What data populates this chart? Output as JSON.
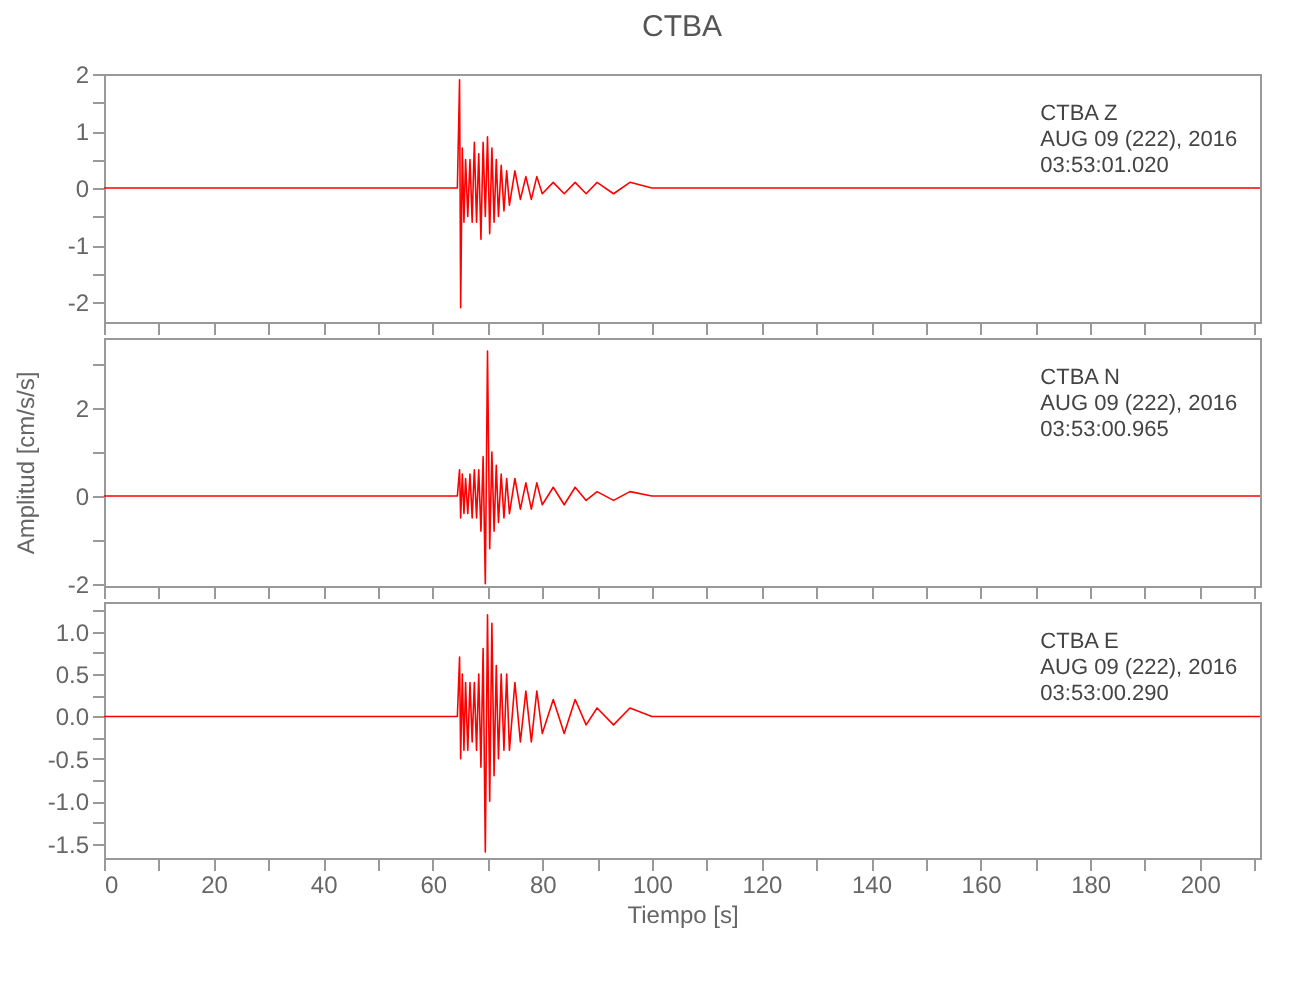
{
  "chart_data": [
    {
      "type": "line",
      "title": "CTBA",
      "annotations": [
        "CTBA   Z",
        "AUG 09 (222), 2016",
        "03:53:01.020"
      ],
      "x": [
        0,
        20,
        40,
        60,
        64.5,
        64.9,
        65.1,
        65.4,
        65.7,
        66,
        66.4,
        66.8,
        67.2,
        67.6,
        68,
        68.4,
        68.8,
        69.2,
        69.6,
        70,
        70.4,
        70.8,
        71.2,
        71.6,
        72,
        72.5,
        73,
        73.5,
        74,
        75,
        76,
        77,
        78,
        79,
        80,
        82,
        84,
        86,
        88,
        90,
        93,
        96,
        100,
        105,
        110,
        120,
        140,
        160,
        180,
        200,
        211
      ],
      "series": [
        {
          "color": "#ff0000",
          "values": [
            0,
            0,
            0,
            0,
            0,
            1.9,
            -2.1,
            0.7,
            -0.6,
            0.5,
            -0.5,
            0.5,
            -0.6,
            0.8,
            -0.6,
            0.6,
            -0.9,
            0.8,
            -0.5,
            0.9,
            -0.8,
            0.7,
            -0.6,
            0.5,
            -0.5,
            0.4,
            -0.4,
            0.3,
            -0.3,
            0.3,
            -0.2,
            0.2,
            -0.2,
            0.2,
            -0.1,
            0.1,
            -0.1,
            0.1,
            -0.1,
            0.1,
            -0.1,
            0.1,
            0,
            0,
            0,
            0,
            0,
            0,
            0,
            0,
            0
          ]
        }
      ],
      "xlim": [
        0,
        211
      ],
      "xticks": [
        0,
        {
          "value": 10,
          "label": null
        },
        20,
        {
          "value": 30,
          "label": null
        },
        40,
        {
          "value": 50,
          "label": null
        },
        60,
        {
          "value": 70,
          "label": null
        },
        80,
        {
          "value": 90,
          "label": null
        },
        100,
        {
          "value": 110,
          "label": null
        },
        120,
        {
          "value": 130,
          "label": null
        },
        140,
        {
          "value": 150,
          "label": null
        },
        160,
        {
          "value": 170,
          "label": null
        },
        180,
        {
          "value": 190,
          "label": null
        },
        200,
        {
          "value": 210,
          "label": null
        }
      ],
      "ylim": [
        -2.35,
        2
      ],
      "yticks": [
        -2,
        {
          "value": -1.5,
          "label": null
        },
        -1,
        {
          "value": -0.5,
          "label": null
        },
        0,
        {
          "value": 0.5,
          "label": null
        },
        1,
        {
          "value": 1.5,
          "label": null
        },
        2
      ],
      "tick_labels": "y",
      "grid": false
    },
    {
      "type": "line",
      "ylabel": "Amplitud  [cm/s/s]",
      "annotations": [
        "CTBA   N",
        "AUG 09 (222), 2016",
        "03:53:00.965"
      ],
      "x": [
        0,
        20,
        40,
        60,
        64.5,
        64.9,
        65.1,
        65.4,
        65.7,
        66,
        66.4,
        66.8,
        67.2,
        67.6,
        68,
        68.4,
        68.8,
        69.2,
        69.6,
        70,
        70.4,
        70.8,
        71.2,
        71.6,
        72,
        72.5,
        73,
        73.5,
        74,
        75,
        76,
        77,
        78,
        79,
        80,
        82,
        84,
        86,
        88,
        90,
        93,
        96,
        100,
        105,
        110,
        120,
        140,
        160,
        180,
        200,
        211
      ],
      "series": [
        {
          "color": "#ff0000",
          "values": [
            0,
            0,
            0,
            0,
            0,
            0.6,
            -0.5,
            0.5,
            -0.4,
            0.4,
            -0.4,
            0.5,
            -0.5,
            0.6,
            -0.5,
            0.6,
            -0.8,
            0.9,
            -2.0,
            3.3,
            -1.2,
            1.0,
            -0.8,
            0.7,
            -0.6,
            0.5,
            -0.5,
            0.4,
            -0.4,
            0.4,
            -0.3,
            0.3,
            -0.3,
            0.3,
            -0.2,
            0.2,
            -0.2,
            0.2,
            -0.1,
            0.1,
            -0.1,
            0.1,
            0,
            0,
            0,
            0,
            0,
            0,
            0,
            0,
            0
          ]
        }
      ],
      "xlim": [
        0,
        211
      ],
      "xticks": [
        0,
        {
          "value": 10,
          "label": null
        },
        20,
        {
          "value": 30,
          "label": null
        },
        40,
        {
          "value": 50,
          "label": null
        },
        60,
        {
          "value": 70,
          "label": null
        },
        80,
        {
          "value": 90,
          "label": null
        },
        100,
        {
          "value": 110,
          "label": null
        },
        120,
        {
          "value": 130,
          "label": null
        },
        140,
        {
          "value": 150,
          "label": null
        },
        160,
        {
          "value": 170,
          "label": null
        },
        180,
        {
          "value": 190,
          "label": null
        },
        200,
        {
          "value": 210,
          "label": null
        }
      ],
      "ylim": [
        -2.05,
        3.6
      ],
      "yticks": [
        -2,
        {
          "value": -1,
          "label": null
        },
        0,
        {
          "value": 1,
          "label": null
        },
        2,
        {
          "value": 3,
          "label": null
        }
      ],
      "tick_labels": "y",
      "grid": false
    },
    {
      "type": "line",
      "xlabel": "Tiempo  [s]",
      "annotations": [
        "CTBA   E",
        "AUG 09 (222), 2016",
        "03:53:00.290"
      ],
      "x": [
        0,
        20,
        40,
        60,
        64.5,
        64.9,
        65.1,
        65.4,
        65.7,
        66,
        66.4,
        66.8,
        67.2,
        67.6,
        68,
        68.4,
        68.8,
        69.2,
        69.6,
        70,
        70.4,
        70.8,
        71.2,
        71.6,
        72,
        72.5,
        73,
        73.5,
        74,
        75,
        76,
        77,
        78,
        79,
        80,
        82,
        84,
        86,
        88,
        90,
        93,
        96,
        100,
        105,
        110,
        120,
        140,
        160,
        180,
        200,
        211
      ],
      "series": [
        {
          "color": "#ff0000",
          "values": [
            0,
            0,
            0,
            0,
            0,
            0.7,
            -0.5,
            0.5,
            -0.4,
            0.4,
            -0.4,
            0.4,
            -0.3,
            0.4,
            -0.4,
            0.5,
            -0.6,
            0.8,
            -1.6,
            1.2,
            -1.0,
            1.1,
            -0.7,
            0.6,
            -0.5,
            0.5,
            -0.4,
            0.5,
            -0.4,
            0.4,
            -0.3,
            0.3,
            -0.3,
            0.3,
            -0.2,
            0.2,
            -0.2,
            0.2,
            -0.1,
            0.1,
            -0.1,
            0.1,
            0,
            0,
            0,
            0,
            0,
            0,
            0,
            0,
            0
          ]
        }
      ],
      "xlim": [
        0,
        211
      ],
      "xticks": [
        0,
        {
          "value": 10,
          "label": null
        },
        20,
        {
          "value": 30,
          "label": null
        },
        40,
        {
          "value": 50,
          "label": null
        },
        60,
        {
          "value": 70,
          "label": null
        },
        80,
        {
          "value": 90,
          "label": null
        },
        100,
        {
          "value": 110,
          "label": null
        },
        120,
        {
          "value": 130,
          "label": null
        },
        140,
        {
          "value": 150,
          "label": null
        },
        160,
        {
          "value": 170,
          "label": null
        },
        180,
        {
          "value": 190,
          "label": null
        },
        200,
        {
          "value": 210,
          "label": null
        }
      ],
      "ylim": [
        -1.67,
        1.35
      ],
      "yticks": [
        {
          "value": -1.5,
          "label": "-1.5"
        },
        {
          "value": -1.25,
          "label": null
        },
        {
          "value": -1,
          "label": "-1.0"
        },
        {
          "value": -0.75,
          "label": null
        },
        {
          "value": -0.5,
          "label": "-0.5"
        },
        {
          "value": -0.25,
          "label": null
        },
        {
          "value": 0,
          "label": "0.0"
        },
        {
          "value": 0.25,
          "label": null
        },
        {
          "value": 0.5,
          "label": "0.5"
        },
        {
          "value": 0.75,
          "label": null
        },
        {
          "value": 1,
          "label": "1.0"
        },
        {
          "value": 1.25,
          "label": null
        }
      ],
      "grid": false
    }
  ]
}
